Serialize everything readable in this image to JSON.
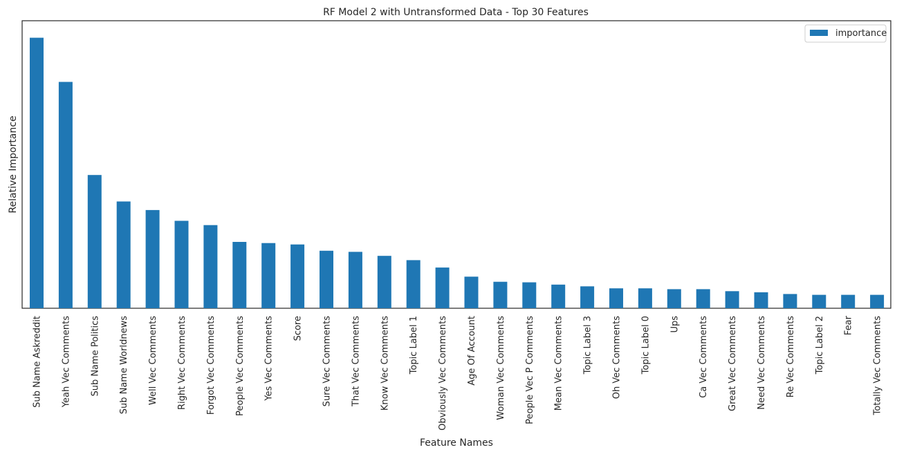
{
  "chart_data": {
    "type": "bar",
    "title": "RF Model 2 with Untransformed Data - Top 30 Features",
    "xlabel": "Feature Names",
    "ylabel": "Relative Importance",
    "y_ticks_shown": false,
    "grid": false,
    "legend_position": "top-right",
    "colors": {
      "bar": "#1f77b4",
      "frame": "#262626",
      "background": "#ffffff"
    },
    "categories": [
      "Sub Name Askreddit",
      "Yeah Vec Comments",
      "Sub Name Politics",
      "Sub Name Worldnews",
      "Well Vec Comments",
      "Right Vec Comments",
      "Forgot Vec Comments",
      "People Vec Comments",
      "Yes Vec Comments",
      "Score",
      "Sure Vec Comments",
      "That Vec Comments",
      "Know Vec Comments",
      "Topic Label 1",
      "Obviously Vec Comments",
      "Age Of Account",
      "Woman Vec Comments",
      "People Vec P Comments",
      "Mean Vec Comments",
      "Topic Label 3",
      "Oh Vec Comments",
      "Topic Label 0",
      "Ups",
      "Ca Vec Comments",
      "Great Vec Comments",
      "Need Vec Comments",
      "Re Vec Comments",
      "Topic Label 2",
      "Fear",
      "Totally Vec Comments"
    ],
    "series": [
      {
        "name": "importance",
        "values": [
          0.95,
          0.795,
          0.468,
          0.375,
          0.345,
          0.307,
          0.292,
          0.233,
          0.229,
          0.224,
          0.202,
          0.198,
          0.184,
          0.169,
          0.143,
          0.111,
          0.093,
          0.091,
          0.083,
          0.077,
          0.07,
          0.07,
          0.067,
          0.067,
          0.06,
          0.056,
          0.05,
          0.047,
          0.047,
          0.047
        ]
      }
    ],
    "ylim": [
      0,
      1.0
    ]
  }
}
